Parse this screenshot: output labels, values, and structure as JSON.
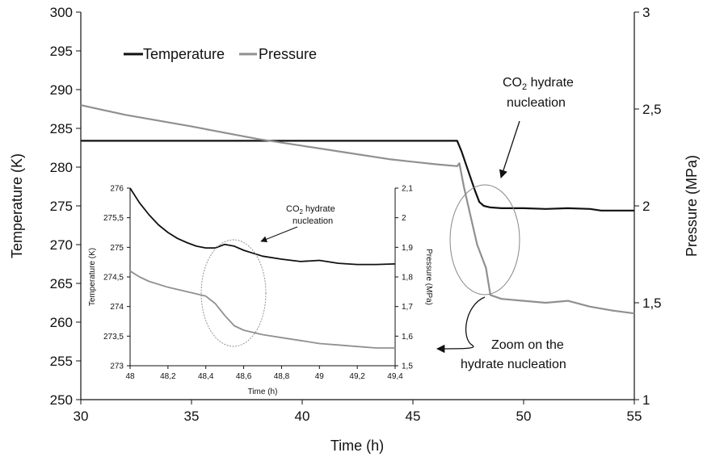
{
  "chart_data": [
    {
      "type": "line",
      "xlabel": "Time (h)",
      "ylabel": "Temperature (K)",
      "y2label": "Pressure (MPa)",
      "xlim": [
        30,
        55
      ],
      "ylim": [
        250,
        300
      ],
      "y2lim": [
        1,
        3
      ],
      "x_ticks": [
        "30",
        "35",
        "40",
        "45",
        "50",
        "55"
      ],
      "y_ticks": [
        "250",
        "255",
        "260",
        "265",
        "270",
        "275",
        "280",
        "285",
        "290",
        "295",
        "300"
      ],
      "y2_ticks": [
        "1",
        "1,5",
        "2",
        "2,5",
        "3"
      ],
      "grid": false,
      "legend_position": "top-left",
      "series": [
        {
          "name": "Temperature",
          "axis": "left",
          "color": "#111111",
          "x": [
            30,
            35,
            40,
            45,
            47.0,
            47.2,
            47.5,
            47.8,
            48.0,
            48.2,
            48.5,
            49,
            50,
            51,
            52,
            53,
            53.5,
            54,
            55
          ],
          "y": [
            283.4,
            283.4,
            283.4,
            283.4,
            283.4,
            282.0,
            279.5,
            277.0,
            275.5,
            275.0,
            274.8,
            274.7,
            274.7,
            274.6,
            274.7,
            274.6,
            274.4,
            274.4,
            274.4
          ]
        },
        {
          "name": "Pressure",
          "axis": "right",
          "color": "#909090",
          "x": [
            30,
            32,
            35,
            38,
            40,
            42,
            44,
            46,
            47.0,
            47.1,
            47.3,
            47.6,
            47.9,
            48.1,
            48.3,
            48.5,
            49,
            50,
            51,
            52,
            53,
            54,
            55
          ],
          "y": [
            2.52,
            2.47,
            2.41,
            2.345,
            2.31,
            2.275,
            2.24,
            2.215,
            2.205,
            2.22,
            2.1,
            1.95,
            1.8,
            1.74,
            1.68,
            1.54,
            1.52,
            1.51,
            1.5,
            1.51,
            1.48,
            1.46,
            1.445
          ]
        }
      ],
      "annotations": [
        {
          "text": "CO",
          "sub": "2",
          "text_after": " hydrate",
          "line2": "nucleation",
          "points_to": [
            48.0,
            277.5
          ]
        },
        {
          "text": "Zoom on the",
          "line2": "hydrate nucleation"
        }
      ]
    },
    {
      "type": "line",
      "xlabel": "Time (h)",
      "ylabel": "Temperature (K)",
      "y2label": "Pressure (MPa)",
      "xlim": [
        48,
        49.4
      ],
      "ylim": [
        273,
        276
      ],
      "y2lim": [
        1.5,
        2.1
      ],
      "x_ticks": [
        "48",
        "48,2",
        "48,4",
        "48,6",
        "48,8",
        "49",
        "49,2",
        "49,4"
      ],
      "y_ticks": [
        "273",
        "273,5",
        "274",
        "274,5",
        "275",
        "275,5",
        "276"
      ],
      "y2_ticks": [
        "1,5",
        "1,6",
        "1,7",
        "1,8",
        "1,9",
        "2",
        "2,1"
      ],
      "grid": false,
      "series": [
        {
          "name": "Temperature",
          "axis": "left",
          "color": "#111111",
          "x": [
            48.0,
            48.05,
            48.1,
            48.15,
            48.2,
            48.25,
            48.3,
            48.35,
            48.4,
            48.45,
            48.5,
            48.55,
            48.6,
            48.65,
            48.7,
            48.8,
            48.9,
            49.0,
            49.1,
            49.2,
            49.3,
            49.4
          ],
          "y": [
            276.0,
            275.75,
            275.55,
            275.38,
            275.25,
            275.15,
            275.08,
            275.02,
            274.99,
            274.99,
            275.05,
            275.02,
            274.95,
            274.9,
            274.85,
            274.8,
            274.76,
            274.78,
            274.73,
            274.71,
            274.71,
            274.72
          ]
        },
        {
          "name": "Pressure",
          "axis": "right",
          "color": "#909090",
          "x": [
            48.0,
            48.05,
            48.1,
            48.2,
            48.3,
            48.4,
            48.45,
            48.5,
            48.55,
            48.6,
            48.7,
            48.8,
            48.9,
            49.0,
            49.1,
            49.2,
            49.3,
            49.4
          ],
          "y": [
            1.82,
            1.8,
            1.785,
            1.765,
            1.75,
            1.735,
            1.71,
            1.67,
            1.635,
            1.62,
            1.605,
            1.595,
            1.585,
            1.575,
            1.57,
            1.565,
            1.56,
            1.56
          ]
        }
      ],
      "annotations": [
        {
          "text": "CO",
          "sub": "2",
          "text_after": " hydrate",
          "line2": "nucleation",
          "points_to": [
            48.62,
            274.96
          ]
        }
      ]
    }
  ]
}
